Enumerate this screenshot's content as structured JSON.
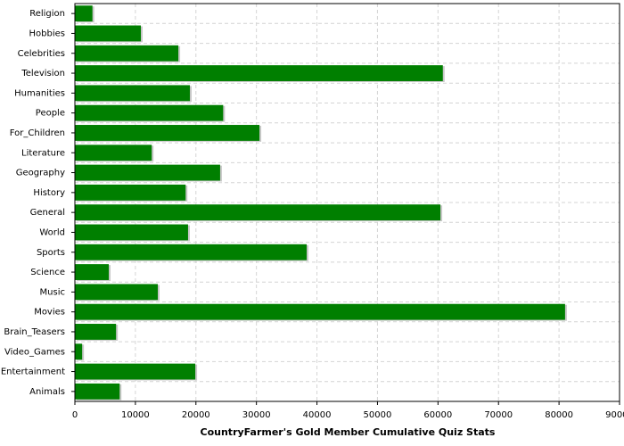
{
  "chart_data": {
    "type": "hbar",
    "xlabel": "CountryFarmer's Gold Member Cumulative Quiz Stats",
    "categories": [
      "Religion",
      "Hobbies",
      "Celebrities",
      "Television",
      "Humanities",
      "People",
      "For_Children",
      "Literature",
      "Geography",
      "History",
      "General",
      "World",
      "Sports",
      "Science",
      "Music",
      "Movies",
      "Brain_Teasers",
      "Video_Games",
      "Entertainment",
      "Animals"
    ],
    "values": [
      2900,
      10900,
      17100,
      60800,
      19000,
      24500,
      30500,
      12700,
      24000,
      18300,
      60400,
      18700,
      38300,
      5600,
      13700,
      81000,
      6800,
      1200,
      19900,
      7400
    ],
    "color": "#007f00",
    "xlim": [
      0,
      90000
    ],
    "xticks": [
      0,
      10000,
      20000,
      30000,
      40000,
      50000,
      60000,
      70000,
      80000,
      90000
    ],
    "grid": true
  }
}
